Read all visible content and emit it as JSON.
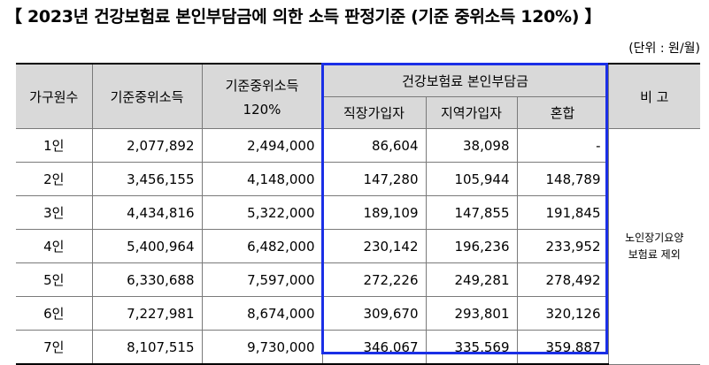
{
  "title": "【 2023년 건강보험료 본인부담금에 의한 소득 판정기준 (기준 중위소득 120%) 】",
  "unit": "(단위 : 원/월)",
  "headers": {
    "household": "가구원수",
    "median": "기준중위소득",
    "median120_line1": "기준중위소득",
    "median120_line2": "120%",
    "premium_group": "건강보험료 본인부담금",
    "employee": "직장가입자",
    "regional": "지역가입자",
    "mixed": "혼합",
    "note": "비 고"
  },
  "rows": [
    {
      "household": "1인",
      "median": "2,077,892",
      "median120": "2,494,000",
      "employee": "86,604",
      "regional": "38,098",
      "mixed": "-"
    },
    {
      "household": "2인",
      "median": "3,456,155",
      "median120": "4,148,000",
      "employee": "147,280",
      "regional": "105,944",
      "mixed": "148,789"
    },
    {
      "household": "3인",
      "median": "4,434,816",
      "median120": "5,322,000",
      "employee": "189,109",
      "regional": "147,855",
      "mixed": "191,845"
    },
    {
      "household": "4인",
      "median": "5,400,964",
      "median120": "6,482,000",
      "employee": "230,142",
      "regional": "196,236",
      "mixed": "233,952"
    },
    {
      "household": "5인",
      "median": "6,330,688",
      "median120": "7,597,000",
      "employee": "272,226",
      "regional": "249,281",
      "mixed": "278,492"
    },
    {
      "household": "6인",
      "median": "7,227,981",
      "median120": "8,674,000",
      "employee": "309,670",
      "regional": "293,801",
      "mixed": "320,126"
    },
    {
      "household": "7인",
      "median": "8,107,515",
      "median120": "9,730,000",
      "employee": "346,067",
      "regional": "335,569",
      "mixed": "359,887"
    }
  ],
  "note": {
    "line1": "노인장기요양",
    "line2": "보험료 제외"
  },
  "colors": {
    "highlight_border": "#1a2fe6",
    "header_bg": "#d9d9d9"
  }
}
